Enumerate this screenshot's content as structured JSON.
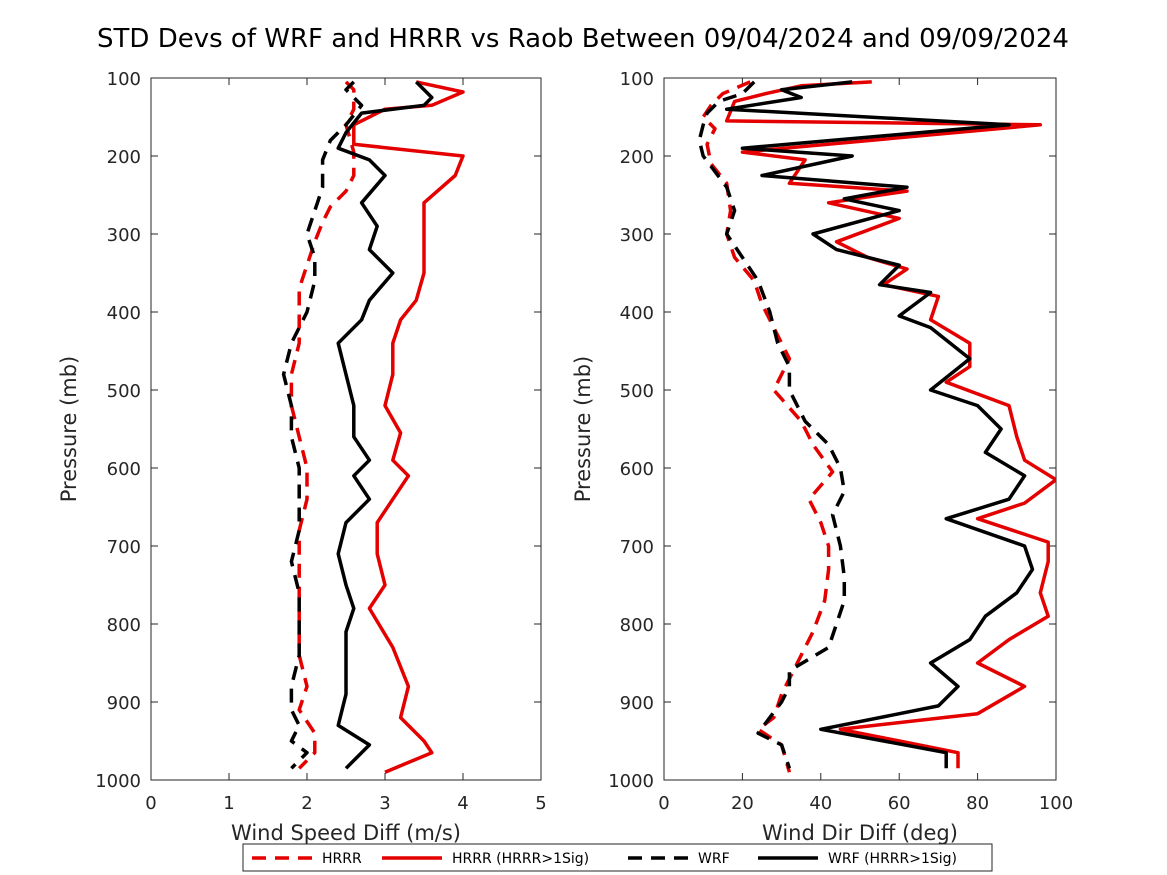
{
  "figure": {
    "title": "STD Devs of WRF and HRRR vs Raob Between 09/04/2024 and 09/09/2024"
  },
  "colors": {
    "hrrr": "#e50000",
    "wrf": "#000000",
    "axis": "#262626"
  },
  "legend": [
    {
      "label": "HRRR",
      "style": "dashed",
      "color": "#e50000"
    },
    {
      "label": "HRRR (HRRR>1Sig)",
      "style": "solid",
      "color": "#e50000"
    },
    {
      "label": "WRF",
      "style": "dashed",
      "color": "#000000"
    },
    {
      "label": "WRF (HRRR>1Sig)",
      "style": "solid",
      "color": "#000000"
    }
  ],
  "chart_data": [
    {
      "type": "line",
      "xlabel": "Wind Speed Diff (m/s)",
      "ylabel": "Pressure (mb)",
      "xlim": [
        0,
        5
      ],
      "ylim": [
        1000,
        100
      ],
      "y_reversed": true,
      "xticks": [
        "0",
        "1",
        "2",
        "3",
        "4",
        "5"
      ],
      "yticks": [
        "100",
        "200",
        "300",
        "400",
        "500",
        "600",
        "700",
        "800",
        "900",
        "1000"
      ],
      "grid": false,
      "series": [
        {
          "name": "HRRR",
          "style": "dashed",
          "color": "#e50000",
          "points": [
            [
              2.5,
              105
            ],
            [
              2.6,
              115
            ],
            [
              2.6,
              140
            ],
            [
              2.5,
              160
            ],
            [
              2.6,
              195
            ],
            [
              2.6,
              225
            ],
            [
              2.5,
              245
            ],
            [
              2.3,
              265
            ],
            [
              2.2,
              285
            ],
            [
              2.1,
              310
            ],
            [
              2.0,
              340
            ],
            [
              1.9,
              370
            ],
            [
              1.9,
              400
            ],
            [
              1.9,
              440
            ],
            [
              1.8,
              480
            ],
            [
              1.8,
              520
            ],
            [
              1.9,
              560
            ],
            [
              2.0,
              600
            ],
            [
              2.0,
              640
            ],
            [
              1.9,
              680
            ],
            [
              1.9,
              720
            ],
            [
              1.9,
              760
            ],
            [
              1.9,
              800
            ],
            [
              1.9,
              840
            ],
            [
              2.0,
              880
            ],
            [
              1.9,
              910
            ],
            [
              2.1,
              940
            ],
            [
              2.1,
              965
            ],
            [
              1.9,
              985
            ]
          ]
        },
        {
          "name": "HRRR (HRRR>1Sig)",
          "style": "solid",
          "color": "#e50000",
          "points": [
            [
              3.4,
              105
            ],
            [
              4.0,
              118
            ],
            [
              3.6,
              135
            ],
            [
              3.0,
              140
            ],
            [
              2.6,
              160
            ],
            [
              2.6,
              185
            ],
            [
              4.0,
              200
            ],
            [
              3.9,
              225
            ],
            [
              3.5,
              260
            ],
            [
              3.5,
              295
            ],
            [
              3.5,
              330
            ],
            [
              3.5,
              350
            ],
            [
              3.4,
              385
            ],
            [
              3.2,
              410
            ],
            [
              3.1,
              440
            ],
            [
              3.1,
              480
            ],
            [
              3.0,
              520
            ],
            [
              3.2,
              555
            ],
            [
              3.1,
              590
            ],
            [
              3.3,
              610
            ],
            [
              3.1,
              640
            ],
            [
              2.9,
              670
            ],
            [
              2.9,
              710
            ],
            [
              3.0,
              750
            ],
            [
              2.8,
              780
            ],
            [
              3.1,
              830
            ],
            [
              3.3,
              880
            ],
            [
              3.2,
              920
            ],
            [
              3.5,
              950
            ],
            [
              3.6,
              965
            ],
            [
              3.0,
              990
            ]
          ]
        },
        {
          "name": "WRF",
          "style": "dashed",
          "color": "#000000",
          "points": [
            [
              2.6,
              105
            ],
            [
              2.5,
              115
            ],
            [
              2.7,
              135
            ],
            [
              2.5,
              160
            ],
            [
              2.3,
              180
            ],
            [
              2.2,
              205
            ],
            [
              2.2,
              240
            ],
            [
              2.1,
              270
            ],
            [
              2.0,
              300
            ],
            [
              2.1,
              330
            ],
            [
              2.1,
              360
            ],
            [
              2.0,
              400
            ],
            [
              1.8,
              440
            ],
            [
              1.7,
              480
            ],
            [
              1.8,
              520
            ],
            [
              1.8,
              560
            ],
            [
              1.9,
              600
            ],
            [
              1.9,
              640
            ],
            [
              1.9,
              680
            ],
            [
              1.8,
              720
            ],
            [
              1.9,
              760
            ],
            [
              1.9,
              800
            ],
            [
              1.9,
              840
            ],
            [
              1.8,
              880
            ],
            [
              1.8,
              910
            ],
            [
              1.9,
              930
            ],
            [
              1.8,
              950
            ],
            [
              2.0,
              965
            ],
            [
              1.8,
              985
            ]
          ]
        },
        {
          "name": "WRF (HRRR>1Sig)",
          "style": "solid",
          "color": "#000000",
          "points": [
            [
              3.4,
              105
            ],
            [
              3.6,
              125
            ],
            [
              3.5,
              135
            ],
            [
              2.7,
              145
            ],
            [
              2.5,
              170
            ],
            [
              2.4,
              190
            ],
            [
              2.8,
              205
            ],
            [
              3.0,
              225
            ],
            [
              2.7,
              260
            ],
            [
              2.9,
              290
            ],
            [
              2.8,
              320
            ],
            [
              3.1,
              350
            ],
            [
              2.8,
              385
            ],
            [
              2.7,
              410
            ],
            [
              2.4,
              440
            ],
            [
              2.5,
              480
            ],
            [
              2.6,
              520
            ],
            [
              2.6,
              560
            ],
            [
              2.8,
              590
            ],
            [
              2.6,
              610
            ],
            [
              2.8,
              640
            ],
            [
              2.5,
              670
            ],
            [
              2.4,
              710
            ],
            [
              2.5,
              750
            ],
            [
              2.6,
              780
            ],
            [
              2.5,
              810
            ],
            [
              2.5,
              850
            ],
            [
              2.5,
              890
            ],
            [
              2.4,
              930
            ],
            [
              2.8,
              955
            ],
            [
              2.5,
              985
            ]
          ]
        }
      ]
    },
    {
      "type": "line",
      "xlabel": "Wind Dir Diff (deg)",
      "ylabel": "Pressure (mb)",
      "xlim": [
        0,
        100
      ],
      "ylim": [
        1000,
        100
      ],
      "y_reversed": true,
      "xticks": [
        "0",
        "20",
        "40",
        "60",
        "80",
        "100"
      ],
      "yticks": [
        "100",
        "200",
        "300",
        "400",
        "500",
        "600",
        "700",
        "800",
        "900",
        "1000"
      ],
      "grid": false,
      "series": [
        {
          "name": "HRRR",
          "style": "dashed",
          "color": "#e50000",
          "points": [
            [
              22,
              105
            ],
            [
              15,
              120
            ],
            [
              12,
              135
            ],
            [
              10,
              150
            ],
            [
              13,
              165
            ],
            [
              11,
              185
            ],
            [
              12,
              210
            ],
            [
              16,
              235
            ],
            [
              17,
              270
            ],
            [
              16,
              300
            ],
            [
              18,
              330
            ],
            [
              23,
              360
            ],
            [
              25,
              390
            ],
            [
              28,
              420
            ],
            [
              32,
              460
            ],
            [
              28,
              500
            ],
            [
              35,
              540
            ],
            [
              38,
              570
            ],
            [
              43,
              605
            ],
            [
              37,
              640
            ],
            [
              40,
              670
            ],
            [
              42,
              700
            ],
            [
              42,
              730
            ],
            [
              41,
              770
            ],
            [
              38,
              810
            ],
            [
              34,
              850
            ],
            [
              30,
              890
            ],
            [
              28,
              920
            ],
            [
              24,
              935
            ],
            [
              30,
              955
            ],
            [
              32,
              990
            ]
          ]
        },
        {
          "name": "HRRR (HRRR>1Sig)",
          "style": "solid",
          "color": "#e50000",
          "points": [
            [
              53,
              105
            ],
            [
              35,
              110
            ],
            [
              26,
              120
            ],
            [
              18,
              130
            ],
            [
              16,
              155
            ],
            [
              96,
              160
            ],
            [
              20,
              195
            ],
            [
              36,
              205
            ],
            [
              32,
              235
            ],
            [
              62,
              245
            ],
            [
              42,
              260
            ],
            [
              60,
              280
            ],
            [
              44,
              310
            ],
            [
              52,
              330
            ],
            [
              62,
              345
            ],
            [
              56,
              365
            ],
            [
              70,
              380
            ],
            [
              68,
              410
            ],
            [
              78,
              440
            ],
            [
              78,
              470
            ],
            [
              72,
              490
            ],
            [
              88,
              520
            ],
            [
              90,
              560
            ],
            [
              92,
              590
            ],
            [
              100,
              615
            ],
            [
              92,
              645
            ],
            [
              80,
              665
            ],
            [
              98,
              695
            ],
            [
              98,
              720
            ],
            [
              96,
              760
            ],
            [
              98,
              790
            ],
            [
              88,
              820
            ],
            [
              80,
              850
            ],
            [
              92,
              880
            ],
            [
              80,
              915
            ],
            [
              45,
              935
            ],
            [
              75,
              965
            ],
            [
              75,
              985
            ]
          ]
        },
        {
          "name": "WRF",
          "style": "dashed",
          "color": "#000000",
          "points": [
            [
              23,
              105
            ],
            [
              20,
              120
            ],
            [
              14,
              130
            ],
            [
              11,
              145
            ],
            [
              10,
              160
            ],
            [
              9,
              180
            ],
            [
              10,
              200
            ],
            [
              13,
              220
            ],
            [
              16,
              240
            ],
            [
              18,
              270
            ],
            [
              16,
              300
            ],
            [
              20,
              330
            ],
            [
              24,
              360
            ],
            [
              27,
              400
            ],
            [
              29,
              440
            ],
            [
              32,
              470
            ],
            [
              32,
              500
            ],
            [
              36,
              540
            ],
            [
              42,
              570
            ],
            [
              45,
              600
            ],
            [
              46,
              630
            ],
            [
              43,
              660
            ],
            [
              45,
              700
            ],
            [
              46,
              740
            ],
            [
              46,
              770
            ],
            [
              44,
              800
            ],
            [
              42,
              830
            ],
            [
              32,
              860
            ],
            [
              32,
              880
            ],
            [
              30,
              900
            ],
            [
              27,
              920
            ],
            [
              24,
              940
            ],
            [
              30,
              955
            ],
            [
              32,
              985
            ]
          ]
        },
        {
          "name": "WRF (HRRR>1Sig)",
          "style": "solid",
          "color": "#000000",
          "points": [
            [
              48,
              105
            ],
            [
              30,
              115
            ],
            [
              35,
              125
            ],
            [
              16,
              140
            ],
            [
              88,
              160
            ],
            [
              20,
              190
            ],
            [
              48,
              200
            ],
            [
              25,
              225
            ],
            [
              62,
              240
            ],
            [
              46,
              255
            ],
            [
              60,
              270
            ],
            [
              38,
              300
            ],
            [
              44,
              320
            ],
            [
              60,
              340
            ],
            [
              55,
              365
            ],
            [
              68,
              375
            ],
            [
              60,
              405
            ],
            [
              68,
              420
            ],
            [
              78,
              460
            ],
            [
              68,
              500
            ],
            [
              80,
              520
            ],
            [
              86,
              550
            ],
            [
              82,
              580
            ],
            [
              92,
              610
            ],
            [
              88,
              640
            ],
            [
              72,
              665
            ],
            [
              92,
              700
            ],
            [
              94,
              730
            ],
            [
              90,
              760
            ],
            [
              82,
              790
            ],
            [
              78,
              820
            ],
            [
              68,
              850
            ],
            [
              75,
              880
            ],
            [
              70,
              905
            ],
            [
              40,
              935
            ],
            [
              72,
              965
            ],
            [
              72,
              985
            ]
          ]
        }
      ]
    }
  ]
}
